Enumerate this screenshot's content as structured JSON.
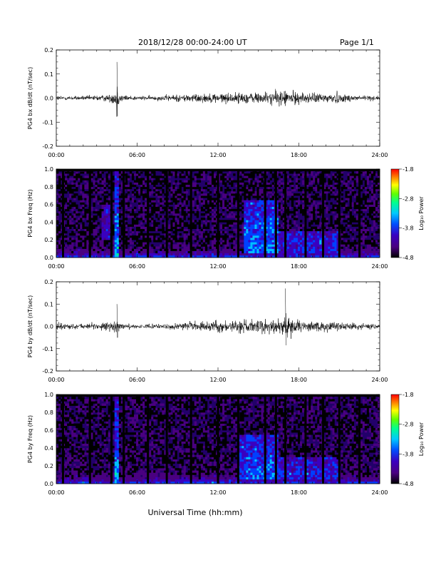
{
  "header": {
    "title": "2018/12/28   00:00-24:00 UT",
    "page": "Page 1/1"
  },
  "xlabel": "Universal Time (hh:mm)",
  "chart_data": [
    {
      "type": "line",
      "title": "",
      "ylabel": "PG4 bx dB/dt (nT/sec)",
      "xlim": [
        "00:00",
        "24:00"
      ],
      "ylim": [
        -0.2,
        0.2
      ],
      "x_ticks": [
        "00:00",
        "06:00",
        "12:00",
        "18:00",
        "24:00"
      ],
      "y_ticks": [
        "0.2",
        "0.1",
        "0.0",
        "-0.1",
        "-0.2"
      ],
      "series": [
        {
          "x_hours": [
            0,
            1,
            2,
            3,
            4,
            4.4,
            4.5,
            4.6,
            5,
            6,
            7,
            8,
            9,
            10,
            11,
            12,
            13,
            14,
            15,
            16,
            16.8,
            17,
            17.5,
            18,
            19,
            20,
            20.8,
            21,
            22,
            23,
            24
          ],
          "amplitude_nT_per_s": [
            0.02,
            0.015,
            0.015,
            0.02,
            0.025,
            0.06,
            0.15,
            0.05,
            0.02,
            0.015,
            0.015,
            0.02,
            0.025,
            0.03,
            0.03,
            0.035,
            0.035,
            0.04,
            0.04,
            0.045,
            0.06,
            0.055,
            0.05,
            0.04,
            0.035,
            0.035,
            0.05,
            0.03,
            0.025,
            0.02,
            0.015
          ]
        }
      ]
    },
    {
      "type": "heatmap",
      "title": "",
      "ylabel": "PG4 bx Freq (Hz)",
      "xlim": [
        "00:00",
        "24:00"
      ],
      "ylim": [
        0.0,
        1.0
      ],
      "x_ticks": [
        "00:00",
        "06:00",
        "12:00",
        "18:00",
        "24:00"
      ],
      "y_ticks": [
        "1.0",
        "0.8",
        "0.6",
        "0.4",
        "0.2",
        "0.0"
      ],
      "colorbar": {
        "label": "Log₁₀ Power",
        "ticks": [
          "-1.8",
          "-2.8",
          "-3.8",
          "-4.8"
        ],
        "range": [
          -4.8,
          -1.8
        ]
      },
      "data_gaps_hours": [
        0.5,
        2.5,
        4.1,
        5.0,
        6.8,
        8.2,
        10.0,
        12.0,
        13.5,
        15.5,
        16.3,
        17.0,
        18.5,
        19.8,
        21.0,
        22.5
      ],
      "enhanced_regions": [
        {
          "x_hours": [
            4.3,
            4.6
          ],
          "freq_Hz": [
            0.0,
            1.0
          ],
          "log_power": -3.5
        },
        {
          "x_hours": [
            3.3,
            4.0
          ],
          "freq_Hz": [
            0.2,
            0.6
          ],
          "log_power": -3.9
        },
        {
          "x_hours": [
            14.0,
            16.5
          ],
          "freq_Hz": [
            0.05,
            0.65
          ],
          "log_power": -3.6
        },
        {
          "x_hours": [
            16.5,
            21.0
          ],
          "freq_Hz": [
            0.05,
            0.3
          ],
          "log_power": -3.9
        }
      ]
    },
    {
      "type": "line",
      "title": "",
      "ylabel": "PG4 by dB/dt (nT/sec)",
      "xlim": [
        "00:00",
        "24:00"
      ],
      "ylim": [
        -0.2,
        0.2
      ],
      "x_ticks": [
        "00:00",
        "06:00",
        "12:00",
        "18:00",
        "24:00"
      ],
      "y_ticks": [
        "0.2",
        "0.1",
        "0.0",
        "-0.1",
        "-0.2"
      ],
      "series": [
        {
          "x_hours": [
            0,
            1,
            2,
            3,
            4,
            4.4,
            4.5,
            4.6,
            5,
            6,
            7,
            8,
            9,
            10,
            11,
            12,
            13,
            14,
            15,
            16,
            16.8,
            17,
            17.5,
            18,
            19,
            20,
            20.8,
            21,
            22,
            23,
            24
          ],
          "amplitude_nT_per_s": [
            0.03,
            0.02,
            0.02,
            0.025,
            0.035,
            0.06,
            0.1,
            0.04,
            0.02,
            0.015,
            0.015,
            0.02,
            0.025,
            0.03,
            0.035,
            0.04,
            0.04,
            0.05,
            0.05,
            0.05,
            0.06,
            0.17,
            0.06,
            0.05,
            0.045,
            0.04,
            0.045,
            0.03,
            0.025,
            0.02,
            0.015
          ]
        }
      ]
    },
    {
      "type": "heatmap",
      "title": "",
      "ylabel": "PG4 by Freq (Hz)",
      "xlim": [
        "00:00",
        "24:00"
      ],
      "ylim": [
        0.0,
        1.0
      ],
      "x_ticks": [
        "00:00",
        "06:00",
        "12:00",
        "18:00",
        "24:00"
      ],
      "y_ticks": [
        "1.0",
        "0.8",
        "0.6",
        "0.4",
        "0.2",
        "0.0"
      ],
      "colorbar": {
        "label": "Log₁₀ Power",
        "ticks": [
          "-1.8",
          "-2.8",
          "-3.8",
          "-4.8"
        ],
        "range": [
          -4.8,
          -1.8
        ]
      },
      "data_gaps_hours": [
        0.5,
        2.5,
        4.1,
        5.0,
        6.8,
        8.2,
        10.0,
        12.0,
        13.5,
        15.5,
        16.3,
        17.0,
        18.5,
        19.8,
        21.0,
        22.5
      ],
      "enhanced_regions": [
        {
          "x_hours": [
            4.3,
            4.6
          ],
          "freq_Hz": [
            0.0,
            1.0
          ],
          "log_power": -3.5
        },
        {
          "x_hours": [
            13.5,
            16.5
          ],
          "freq_Hz": [
            0.05,
            0.55
          ],
          "log_power": -3.7
        },
        {
          "x_hours": [
            16.5,
            21.0
          ],
          "freq_Hz": [
            0.05,
            0.3
          ],
          "log_power": -3.9
        }
      ]
    }
  ],
  "colors": {
    "trace": "#000000",
    "colormap": [
      "#000000",
      "#4a0080",
      "#3a00c0",
      "#0040ff",
      "#00c0ff",
      "#00ff90",
      "#80ff00",
      "#ffff00",
      "#ff8000",
      "#ff0000"
    ]
  }
}
